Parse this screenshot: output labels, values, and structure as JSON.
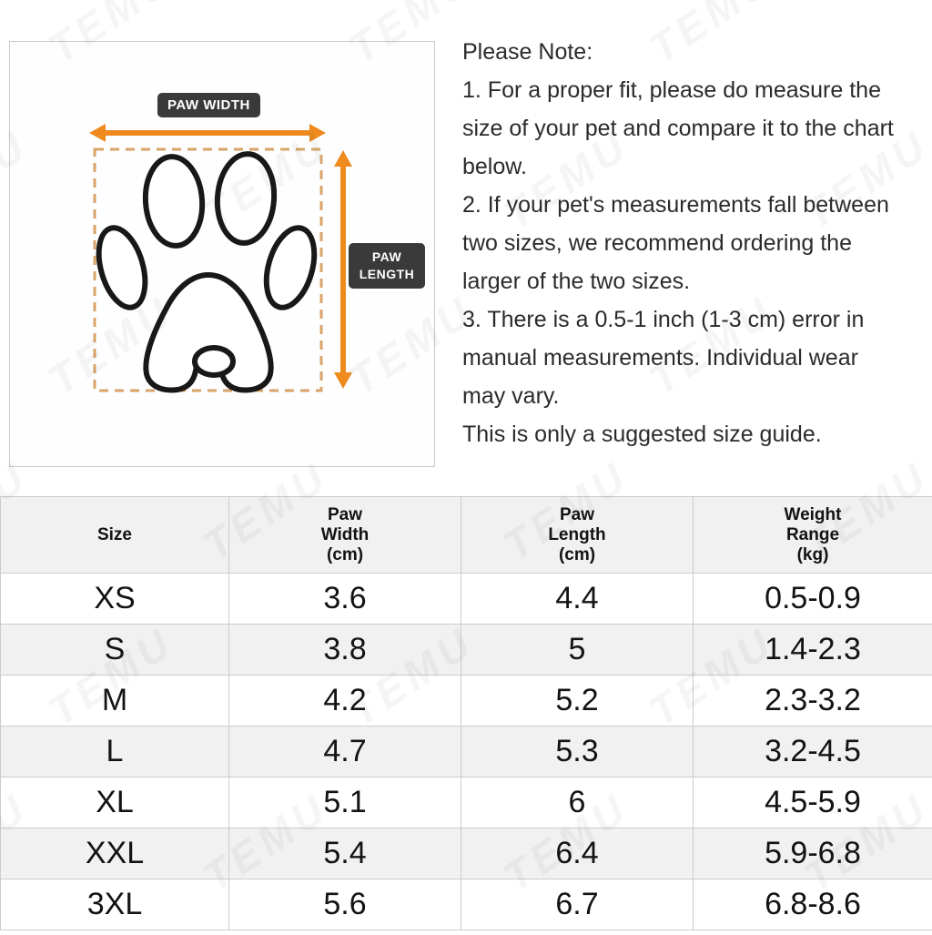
{
  "diagram": {
    "paw_width_label": "PAW WIDTH",
    "paw_length_label": "PAW\nLENGTH"
  },
  "notes": {
    "title": "Please Note:",
    "lines": [
      "1. For a proper fit, please do measure the",
      "size of your pet and compare it to the chart",
      "below.",
      "2. If your pet's measurements fall between",
      "two sizes, we recommend ordering the",
      "larger of the two sizes.",
      "3. There is a 0.5-1 inch (1-3 cm) error in",
      "manual measurements. Individual wear",
      "may vary.",
      "This is only a suggested size guide."
    ]
  },
  "table": {
    "headers": [
      "Size",
      "Paw\nWidth\n(cm)",
      "Paw\nLength\n(cm)",
      "Weight\nRange\n(kg)"
    ],
    "rows": [
      [
        "XS",
        "3.6",
        "4.4",
        "0.5-0.9"
      ],
      [
        "S",
        "3.8",
        "5",
        "1.4-2.3"
      ],
      [
        "M",
        "4.2",
        "5.2",
        "2.3-3.2"
      ],
      [
        "L",
        "4.7",
        "5.3",
        "3.2-4.5"
      ],
      [
        "XL",
        "5.1",
        "6",
        "4.5-5.9"
      ],
      [
        "XXL",
        "5.4",
        "6.4",
        "5.9-6.8"
      ],
      [
        "3XL",
        "5.6",
        "6.7",
        "6.8-8.6"
      ]
    ]
  },
  "watermark": "TEMU",
  "colors": {
    "arrow_orange": "#ee8a1e",
    "dashed_tan": "#d9a469",
    "label_dark": "#3a3a3a",
    "paw_outline": "#181818",
    "table_stripe": "#f1f1f1",
    "table_border": "#cccccc"
  }
}
